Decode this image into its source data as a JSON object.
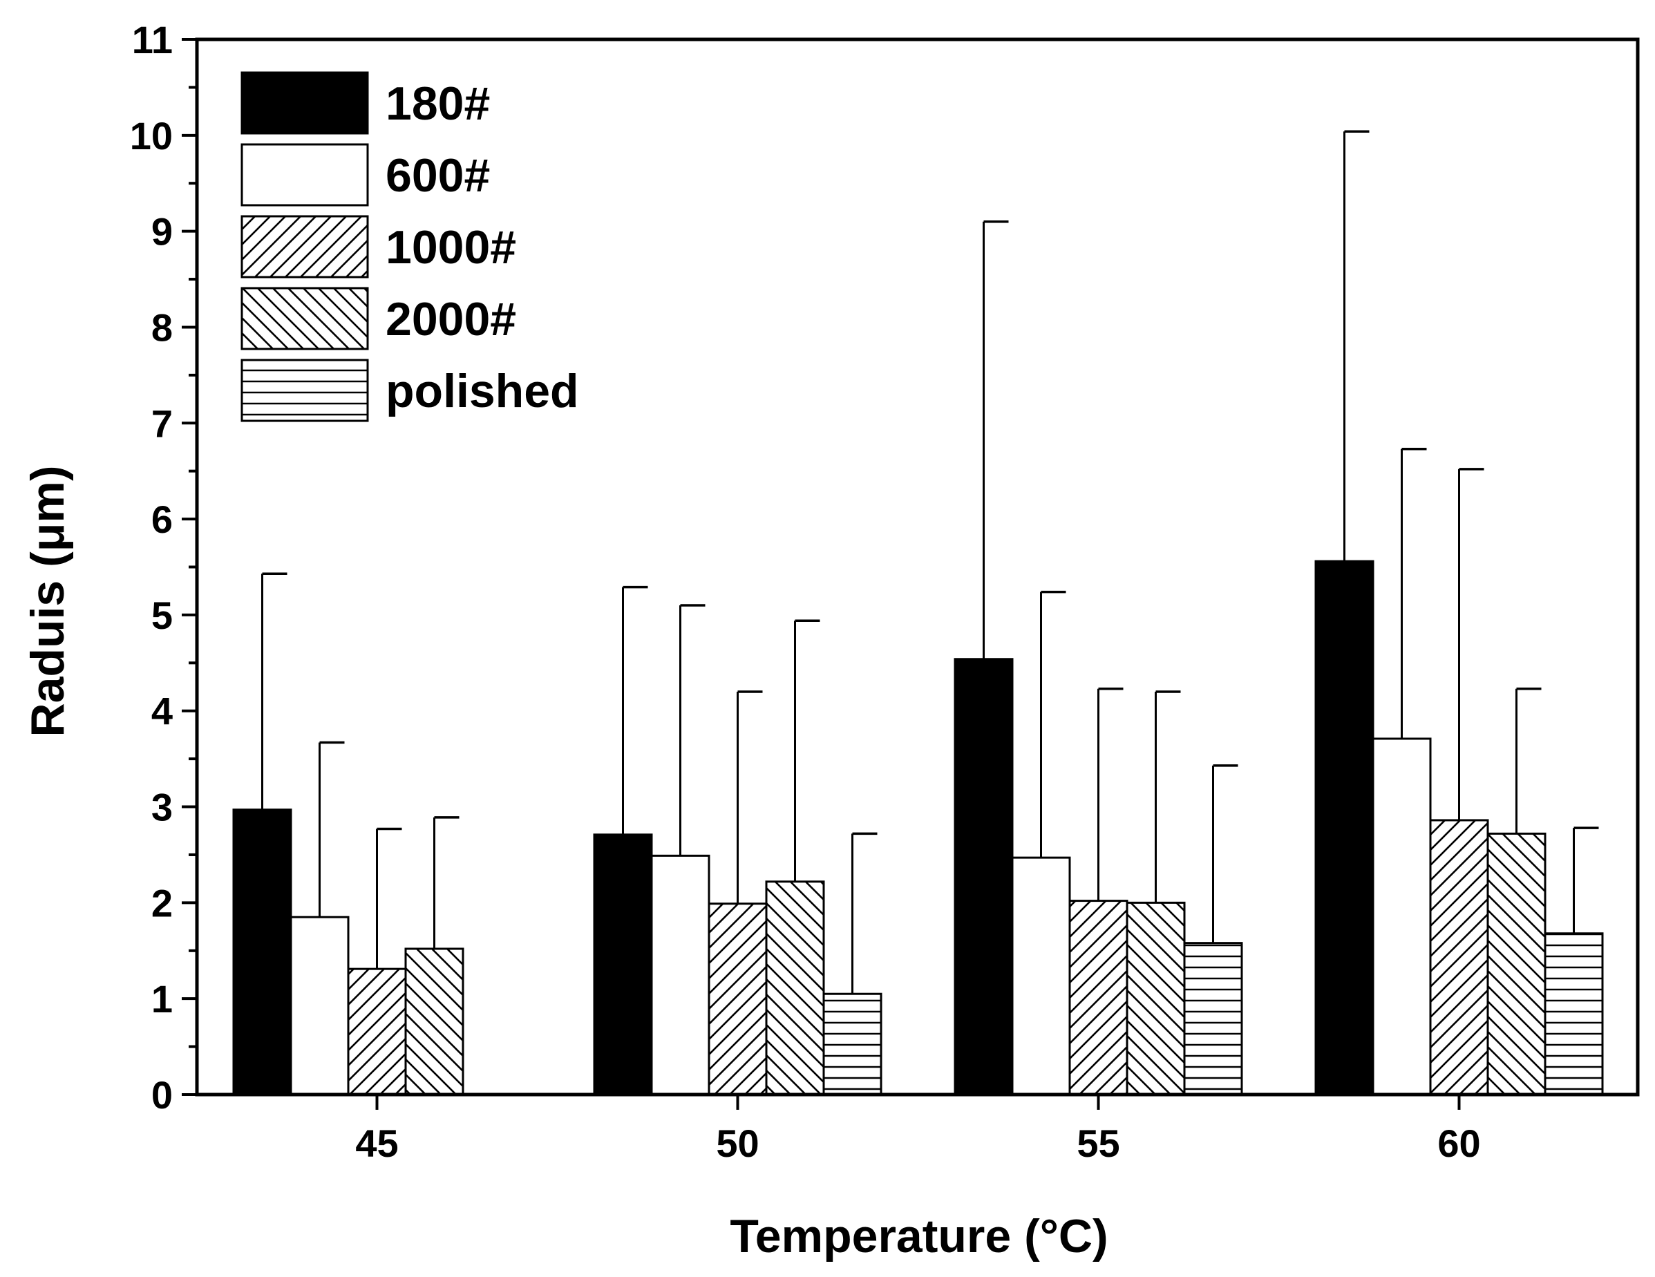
{
  "chart_data": {
    "type": "bar",
    "title": "",
    "xlabel": "Temperature (°C)",
    "ylabel": "Raduis (μm)",
    "ylim": [
      0,
      11
    ],
    "yticks": [
      "0",
      "1",
      "2",
      "3",
      "4",
      "5",
      "6",
      "7",
      "8",
      "9",
      "10",
      "11"
    ],
    "categories": [
      "45",
      "50",
      "55",
      "60"
    ],
    "legend_position": "top-left",
    "grid": false,
    "series": [
      {
        "name": "180#",
        "pattern": "solid",
        "values": [
          2.97,
          2.71,
          4.54,
          5.56
        ],
        "error_upper": [
          5.43,
          5.29,
          9.1,
          10.04
        ]
      },
      {
        "name": "600#",
        "pattern": "empty",
        "values": [
          1.85,
          2.49,
          2.47,
          3.71
        ],
        "error_upper": [
          3.67,
          5.1,
          5.24,
          6.73
        ]
      },
      {
        "name": "1000#",
        "pattern": "forward-diagonal",
        "values": [
          1.31,
          1.99,
          2.02,
          2.86
        ],
        "error_upper": [
          2.77,
          4.2,
          4.23,
          6.52
        ]
      },
      {
        "name": "2000#",
        "pattern": "back-diagonal",
        "values": [
          1.52,
          2.22,
          2.0,
          2.72
        ],
        "error_upper": [
          2.89,
          4.94,
          4.2,
          4.23
        ]
      },
      {
        "name": "polished",
        "pattern": "horizontal",
        "values": [
          null,
          1.05,
          1.58,
          1.68
        ],
        "error_upper": [
          null,
          2.72,
          3.43,
          2.78
        ]
      }
    ],
    "colors": {
      "bar_fill": "#000000",
      "bar_background": "#ffffff",
      "axis": "#000000"
    }
  }
}
